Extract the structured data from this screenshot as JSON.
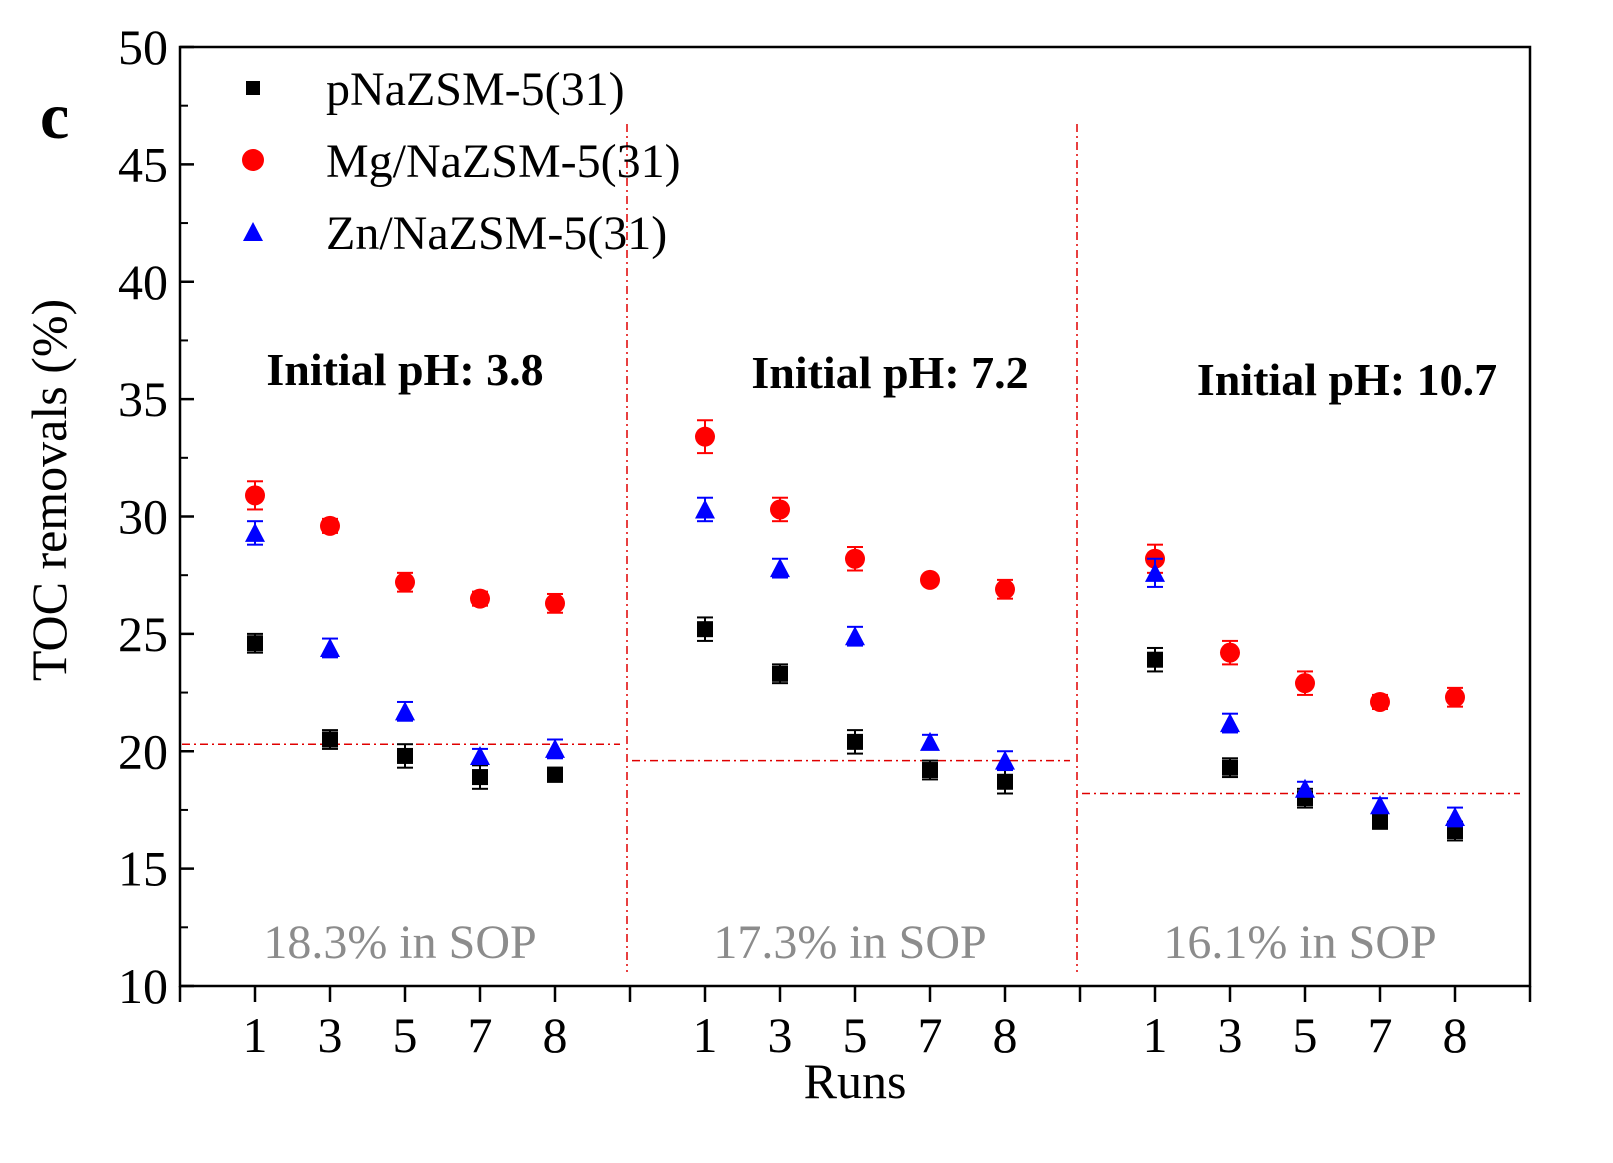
{
  "chart_data": {
    "type": "scatter",
    "panel_letter": "c",
    "xlabel": "Runs",
    "ylabel": "TOC removals (%)",
    "ylim": [
      10,
      50
    ],
    "yticks": [
      "10",
      "15",
      "20",
      "25",
      "30",
      "35",
      "40",
      "45",
      "50"
    ],
    "ytick_values": [
      10,
      15,
      20,
      25,
      30,
      35,
      40,
      45,
      50
    ],
    "run_labels": [
      "1",
      "3",
      "5",
      "7",
      "8"
    ],
    "legend_position": "top-left",
    "series_styles": [
      {
        "name": "pNaZSM-5(31)",
        "color": "#000000",
        "marker": "square"
      },
      {
        "name": "Mg/NaZSM-5(31)",
        "color": "#ff0000",
        "marker": "circle"
      },
      {
        "name": "Zn/NaZSM-5(31)",
        "color": "#0000ff",
        "marker": "triangle"
      }
    ],
    "groups": [
      {
        "label": "Initial pH: 3.8",
        "sop_label": "18.3% in SOP",
        "sop_line_value": 20.3,
        "series": [
          {
            "name": "pNaZSM-5(31)",
            "values": [
              24.6,
              20.5,
              19.8,
              18.9,
              19.0
            ],
            "errors": [
              0.4,
              0.4,
              0.5,
              0.5,
              0.3
            ]
          },
          {
            "name": "Mg/NaZSM-5(31)",
            "values": [
              30.9,
              29.6,
              27.2,
              26.5,
              26.3
            ],
            "errors": [
              0.6,
              0.3,
              0.4,
              0.3,
              0.4
            ]
          },
          {
            "name": "Zn/NaZSM-5(31)",
            "values": [
              29.3,
              24.4,
              21.7,
              19.8,
              20.1
            ],
            "errors": [
              0.5,
              0.4,
              0.4,
              0.3,
              0.4
            ]
          }
        ]
      },
      {
        "label": "Initial pH: 7.2",
        "sop_label": "17.3% in SOP",
        "sop_line_value": 19.6,
        "series": [
          {
            "name": "pNaZSM-5(31)",
            "values": [
              25.2,
              23.3,
              20.4,
              19.2,
              18.7
            ],
            "errors": [
              0.5,
              0.4,
              0.5,
              0.4,
              0.5
            ]
          },
          {
            "name": "Mg/NaZSM-5(31)",
            "values": [
              33.4,
              30.3,
              28.2,
              27.3,
              26.9
            ],
            "errors": [
              0.7,
              0.5,
              0.5,
              0.2,
              0.4
            ]
          },
          {
            "name": "Zn/NaZSM-5(31)",
            "values": [
              30.3,
              27.8,
              24.9,
              20.4,
              19.6
            ],
            "errors": [
              0.5,
              0.4,
              0.4,
              0.3,
              0.4
            ]
          }
        ]
      },
      {
        "label": "Initial pH: 10.7",
        "sop_label": "16.1% in SOP",
        "sop_line_value": 18.2,
        "series": [
          {
            "name": "pNaZSM-5(31)",
            "values": [
              23.9,
              19.3,
              18.0,
              17.0,
              16.6
            ],
            "errors": [
              0.5,
              0.4,
              0.4,
              0.3,
              0.4
            ]
          },
          {
            "name": "Mg/NaZSM-5(31)",
            "values": [
              28.2,
              24.2,
              22.9,
              22.1,
              22.3
            ],
            "errors": [
              0.6,
              0.5,
              0.5,
              0.3,
              0.4
            ]
          },
          {
            "name": "Zn/NaZSM-5(31)",
            "values": [
              27.6,
              21.2,
              18.4,
              17.7,
              17.2
            ],
            "errors": [
              0.6,
              0.4,
              0.3,
              0.3,
              0.4
            ]
          }
        ]
      }
    ]
  }
}
